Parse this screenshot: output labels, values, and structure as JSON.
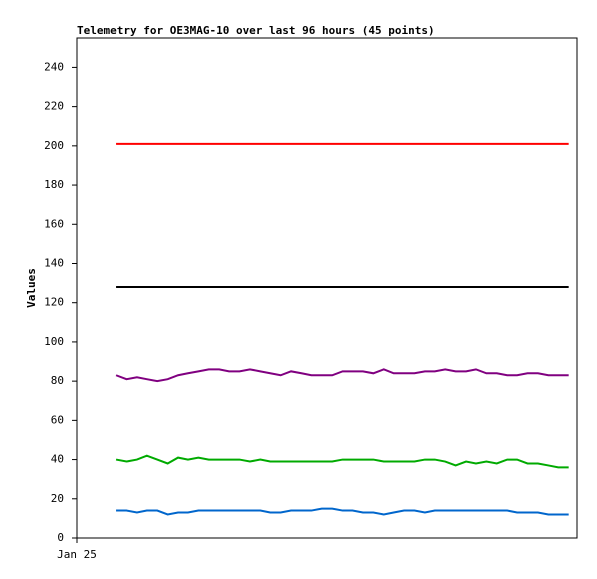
{
  "chart_data": {
    "type": "line",
    "title": "Telemetry for OE3MAG-10 over last 96 hours (45 points)",
    "y_label": "Values",
    "xlim": [
      0,
      96
    ],
    "xticks": [
      {
        "value": 0,
        "label": "Jan 25"
      }
    ],
    "ylim": [
      0,
      255
    ],
    "yticks": [
      0,
      20,
      40,
      60,
      80,
      100,
      120,
      140,
      160,
      180,
      200,
      220,
      240
    ],
    "grid": false,
    "x": [
      7.5,
      9.5,
      11.5,
      13.4,
      15.4,
      17.4,
      19.4,
      21.3,
      23.3,
      25.3,
      27.3,
      29.2,
      31.2,
      33.2,
      35.2,
      37.1,
      39.1,
      41.1,
      43.1,
      45.0,
      47.0,
      49.0,
      51.0,
      52.9,
      54.9,
      56.9,
      58.9,
      60.8,
      62.8,
      64.8,
      66.8,
      68.7,
      70.7,
      72.7,
      74.7,
      76.6,
      78.6,
      80.6,
      82.6,
      84.5,
      86.5,
      88.5,
      90.5,
      92.4,
      94.4
    ],
    "series": [
      {
        "color": "#ff0000",
        "values": [
          201,
          201,
          201,
          201,
          201,
          201,
          201,
          201,
          201,
          201,
          201,
          201,
          201,
          201,
          201,
          201,
          201,
          201,
          201,
          201,
          201,
          201,
          201,
          201,
          201,
          201,
          201,
          201,
          201,
          201,
          201,
          201,
          201,
          201,
          201,
          201,
          201,
          201,
          201,
          201,
          201,
          201,
          201,
          201,
          201
        ]
      },
      {
        "color": "#000000",
        "values": [
          128,
          128,
          128,
          128,
          128,
          128,
          128,
          128,
          128,
          128,
          128,
          128,
          128,
          128,
          128,
          128,
          128,
          128,
          128,
          128,
          128,
          128,
          128,
          128,
          128,
          128,
          128,
          128,
          128,
          128,
          128,
          128,
          128,
          128,
          128,
          128,
          128,
          128,
          128,
          128,
          128,
          128,
          128,
          128,
          128
        ]
      },
      {
        "color": "#800080",
        "values": [
          83,
          81,
          82,
          81,
          80,
          81,
          83,
          84,
          85,
          86,
          86,
          85,
          85,
          86,
          85,
          84,
          83,
          85,
          84,
          83,
          83,
          83,
          85,
          85,
          85,
          84,
          86,
          84,
          84,
          84,
          85,
          85,
          86,
          85,
          85,
          86,
          84,
          84,
          83,
          83,
          84,
          84,
          83,
          83,
          83
        ]
      },
      {
        "color": "#00aa00",
        "values": [
          40,
          39,
          40,
          42,
          40,
          38,
          41,
          40,
          41,
          40,
          40,
          40,
          40,
          39,
          40,
          39,
          39,
          39,
          39,
          39,
          39,
          39,
          40,
          40,
          40,
          40,
          39,
          39,
          39,
          39,
          40,
          40,
          39,
          37,
          39,
          38,
          39,
          38,
          40,
          40,
          38,
          38,
          37,
          36,
          36
        ]
      },
      {
        "color": "#0066cc",
        "values": [
          14,
          14,
          13,
          14,
          14,
          12,
          13,
          13,
          14,
          14,
          14,
          14,
          14,
          14,
          14,
          13,
          13,
          14,
          14,
          14,
          15,
          15,
          14,
          14,
          13,
          13,
          12,
          13,
          14,
          14,
          13,
          14,
          14,
          14,
          14,
          14,
          14,
          14,
          14,
          13,
          13,
          13,
          12,
          12,
          12
        ]
      }
    ]
  }
}
